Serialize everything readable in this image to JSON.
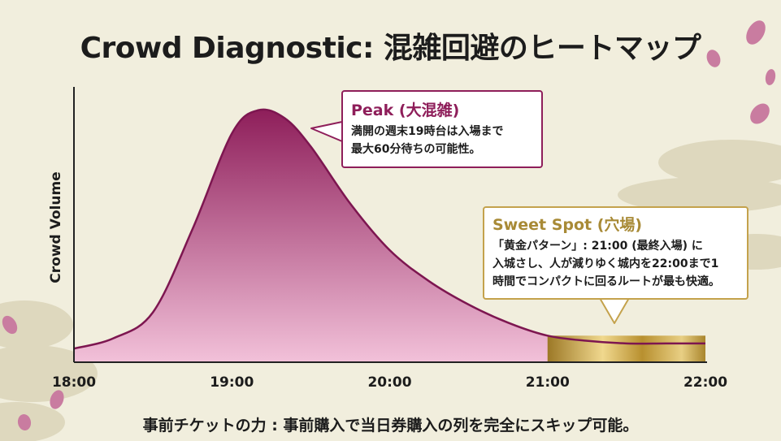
{
  "title": "Crowd Diagnostic: 混雑回避のヒートマップ",
  "chart_data": {
    "type": "area",
    "ylabel": "Crowd Volume",
    "xlabel": "",
    "x_ticks": [
      "18:00",
      "19:00",
      "20:00",
      "21:00",
      "22:00"
    ],
    "x_range": [
      "18:00",
      "22:00"
    ],
    "series": [
      {
        "x": [
          "18:00",
          "18:15",
          "18:30",
          "18:45",
          "19:00",
          "19:10",
          "19:20",
          "19:30",
          "19:45",
          "20:00",
          "20:15",
          "20:30",
          "20:45",
          "21:00",
          "21:15",
          "21:30",
          "21:45",
          "22:00"
        ],
        "values": [
          4,
          8,
          18,
          50,
          87,
          96,
          93,
          82,
          60,
          42,
          30,
          21,
          14,
          9,
          7,
          6,
          6,
          6
        ]
      }
    ],
    "highlight_range": [
      "21:00",
      "22:00"
    ],
    "grid": false,
    "colors": {
      "fill_top": "#8e1e5a",
      "fill_bottom": "#f2c1d9",
      "line": "#7d1650",
      "highlight": "#b8902f"
    }
  },
  "callouts": {
    "peak": {
      "title": "Peak (大混雑)",
      "lines": [
        "満開の週末19時台は入場まで",
        "最大60分待ちの可能性。"
      ]
    },
    "sweet": {
      "title": "Sweet Spot (穴場)",
      "lines": [
        "「黄金パターン」: 21:00 (最終入場) に",
        "入城さし、人が減りゆく城内を22:00まで1",
        "時間でコンパクトに回るルートが最も快適。"
      ]
    }
  },
  "footer": "事前チケットの力 : 事前購入で当日券購入の列を完全にスキップ可能。"
}
